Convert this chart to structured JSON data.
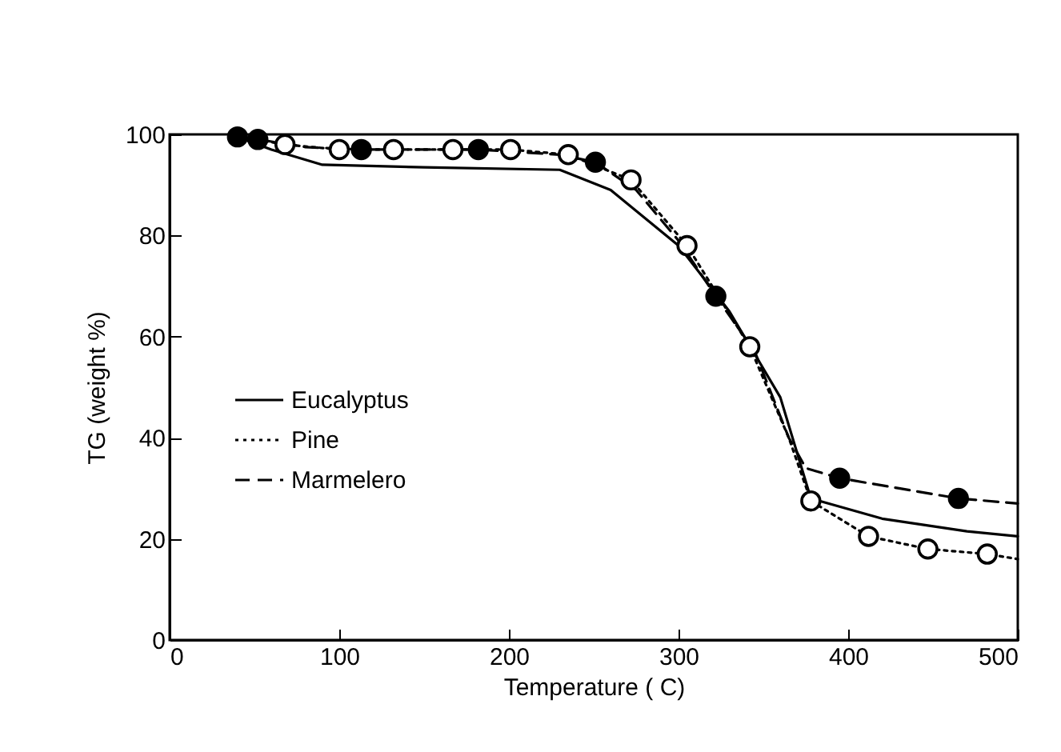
{
  "chart_data": {
    "type": "line",
    "xlabel": "Temperature ( C)",
    "ylabel": "TG (weight %)",
    "xlim": [
      0,
      500
    ],
    "ylim": [
      0,
      100
    ],
    "xticks": [
      0,
      100,
      200,
      300,
      400,
      500
    ],
    "yticks": [
      0,
      20,
      40,
      60,
      80,
      100
    ],
    "grid": false,
    "legend": "bottom left",
    "series": [
      {
        "name": "Eucalyptus",
        "color": "#000000",
        "line_style": "solid",
        "marker": "none",
        "x": [
          40,
          60,
          90,
          150,
          230,
          260,
          300,
          330,
          360,
          378,
          420,
          470,
          500
        ],
        "values": [
          99.5,
          97,
          94,
          93.5,
          93,
          89,
          78,
          65,
          48,
          28,
          24,
          21.5,
          20.5
        ]
      },
      {
        "name": "Pine",
        "color": "#000000",
        "line_style": "dotted",
        "marker": "none",
        "x": [
          42,
          68,
          100,
          132,
          167,
          201,
          235,
          272,
          305,
          342,
          365,
          378,
          412,
          447,
          482,
          500
        ],
        "values": [
          99.5,
          98,
          97,
          97,
          97,
          97,
          96,
          91,
          78,
          58,
          40,
          27.5,
          20.5,
          18,
          17,
          16
        ]
      },
      {
        "name": "Marmelero",
        "color": "#000000",
        "line_style": "dashed",
        "marker": "none",
        "x": [
          40,
          52,
          80,
          113,
          182,
          230,
          251,
          275,
          300,
          322,
          345,
          365,
          375,
          395,
          430,
          465,
          500
        ],
        "values": [
          99.5,
          99,
          97.5,
          97,
          97,
          96,
          94.5,
          89,
          79,
          68,
          57,
          40,
          34,
          32,
          30,
          28,
          27
        ]
      },
      {
        "type": "scatter",
        "color": "#ffffff",
        "marker": "circle",
        "x": [
          68,
          100,
          132,
          167,
          201,
          235,
          272,
          305,
          342,
          378,
          412,
          447,
          482
        ],
        "values": [
          98,
          97,
          97,
          97,
          97,
          96,
          91,
          78,
          58,
          27.5,
          20.5,
          18,
          17
        ]
      },
      {
        "type": "scatter",
        "color": "#000000",
        "marker": "circle",
        "x": [
          40,
          52,
          113,
          182,
          251,
          322,
          395,
          465
        ],
        "values": [
          99.5,
          99,
          97,
          97,
          94.5,
          68,
          32,
          28
        ]
      }
    ]
  }
}
